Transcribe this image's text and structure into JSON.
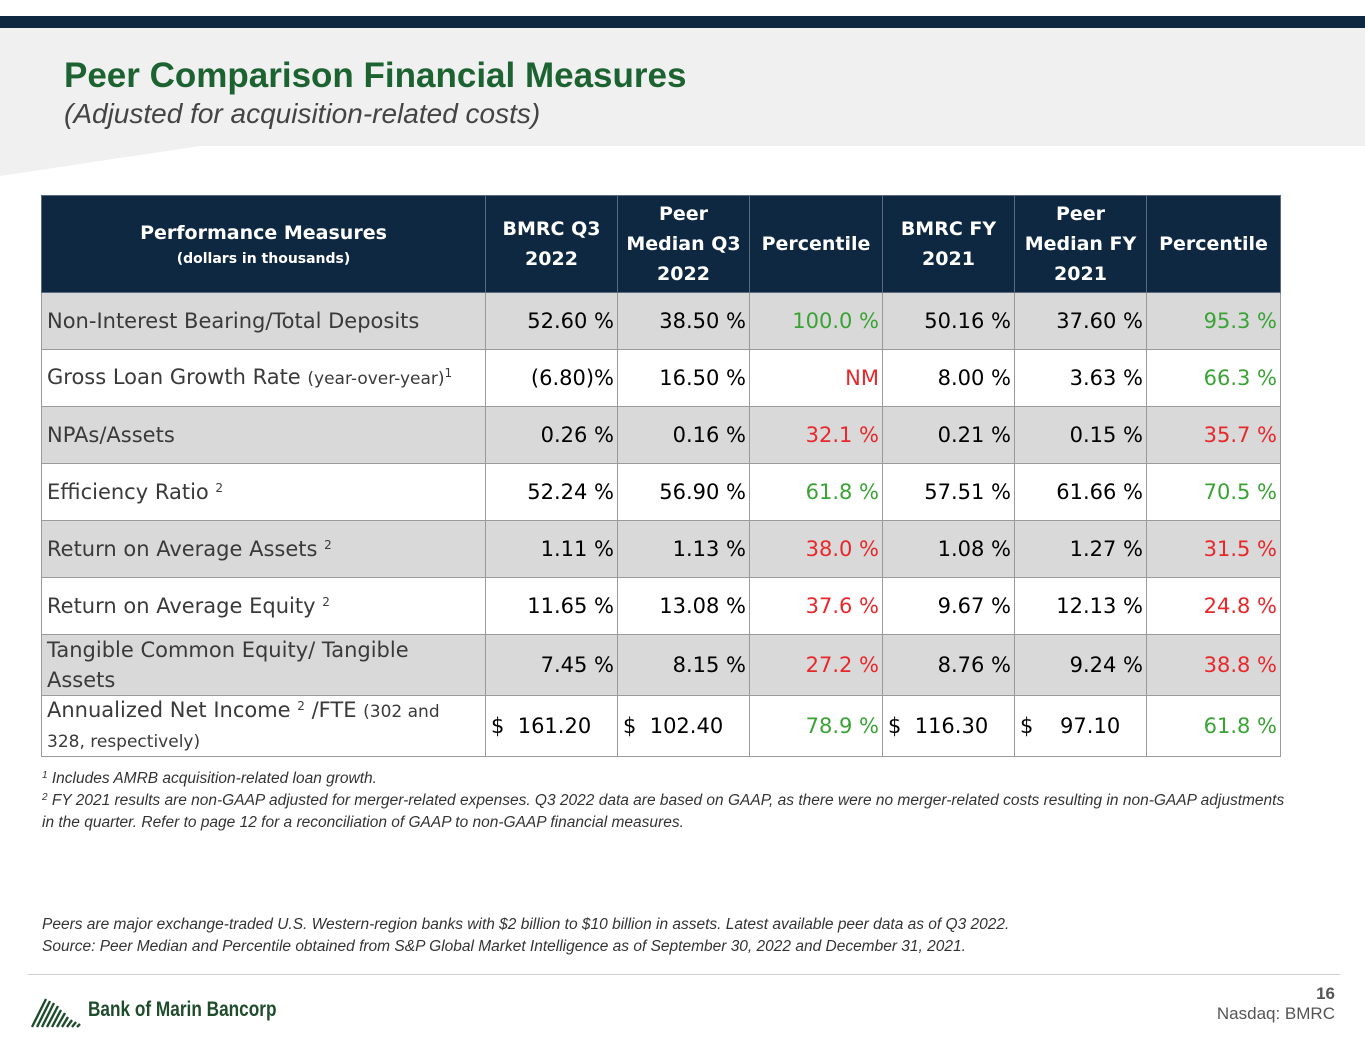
{
  "header": {
    "title": "Peer Comparison Financial Measures",
    "subtitle": "(Adjusted for acquisition-related costs)"
  },
  "table": {
    "headers": [
      {
        "main": "Performance Measures",
        "sub": "(dollars in thousands)"
      },
      {
        "main": "BMRC Q3 2022"
      },
      {
        "main": "Peer Median Q3 2022"
      },
      {
        "main": "Percentile"
      },
      {
        "main": "BMRC FY 2021"
      },
      {
        "main": "Peer Median FY 2021"
      },
      {
        "main": "Percentile"
      }
    ],
    "rows": [
      {
        "label": "Non-Interest Bearing/Total Deposits",
        "paren": "",
        "sup": "",
        "tail": "",
        "cells": [
          "52.60 %",
          "38.50 %",
          "100.0 %",
          "50.16 %",
          "37.60 %",
          "95.3 %"
        ]
      },
      {
        "label": "Gross Loan Growth Rate ",
        "paren": "(year-over-year)",
        "sup": "1",
        "tail": "",
        "cells": [
          "(6.80)%",
          "16.50 %",
          "NM",
          "8.00 %",
          "3.63 %",
          "66.3 %"
        ]
      },
      {
        "label": "NPAs/Assets",
        "paren": "",
        "sup": "",
        "tail": "",
        "cells": [
          "0.26 %",
          "0.16 %",
          "32.1 %",
          "0.21 %",
          "0.15 %",
          "35.7 %"
        ]
      },
      {
        "label": "Efficiency Ratio ",
        "paren": "",
        "sup": "2",
        "tail": "",
        "cells": [
          "52.24 %",
          "56.90 %",
          "61.8 %",
          "57.51 %",
          "61.66 %",
          "70.5 %"
        ]
      },
      {
        "label": "Return on Average Assets ",
        "paren": "",
        "sup": "2",
        "tail": "",
        "cells": [
          "1.11 %",
          "1.13 %",
          "38.0 %",
          "1.08 %",
          "1.27 %",
          "31.5 %"
        ]
      },
      {
        "label": "Return on Average Equity ",
        "paren": "",
        "sup": "2",
        "tail": "",
        "cells": [
          "11.65 %",
          "13.08 %",
          "37.6 %",
          "9.67 %",
          "12.13 %",
          "24.8 %"
        ]
      },
      {
        "label": "Tangible Common Equity/ Tangible Assets",
        "paren": "",
        "sup": "",
        "tail": "",
        "cells": [
          "7.45 %",
          "8.15 %",
          "27.2 %",
          "8.76 %",
          "9.24 %",
          "38.8 %"
        ]
      },
      {
        "label": "Annualized Net Income ",
        "paren": "",
        "sup": "2",
        "tail": " /FTE ",
        "tail_paren": "(302 and 328, respectively)",
        "cells": [
          "$  161.20",
          "$  102.40",
          "78.9 %",
          "$  116.30",
          "$    97.10",
          "61.8 %"
        ]
      }
    ],
    "percentile_colors": {
      "green": "#3aa335",
      "red": "#e8282b"
    }
  },
  "footnotes": {
    "n1_mark": "1",
    "n1": " Includes AMRB acquisition-related loan growth.",
    "n2_mark": "2",
    "n2": " FY 2021 results are non-GAAP adjusted for merger-related expenses. Q3 2022 data are based on GAAP, as there were no merger-related costs resulting in non-GAAP adjustments in the quarter.  Refer to page 12 for a reconciliation of GAAP to non-GAAP financial measures."
  },
  "peers": {
    "line1": "Peers are major exchange-traded U.S. Western-region banks with $2 billion to $10 billion in assets. Latest available peer data as of Q3 2022.",
    "line2": "Source: Peer Median and Percentile obtained from S&P Global Market Intelligence as of September 30, 2022 and December 31, 2021."
  },
  "footer": {
    "logo_text": "Bank of Marin Bancorp",
    "page_number": "16",
    "exchange": "Nasdaq: BMRC"
  },
  "colors": {
    "navy": "#0e2841",
    "title_green": "#1c6331"
  }
}
